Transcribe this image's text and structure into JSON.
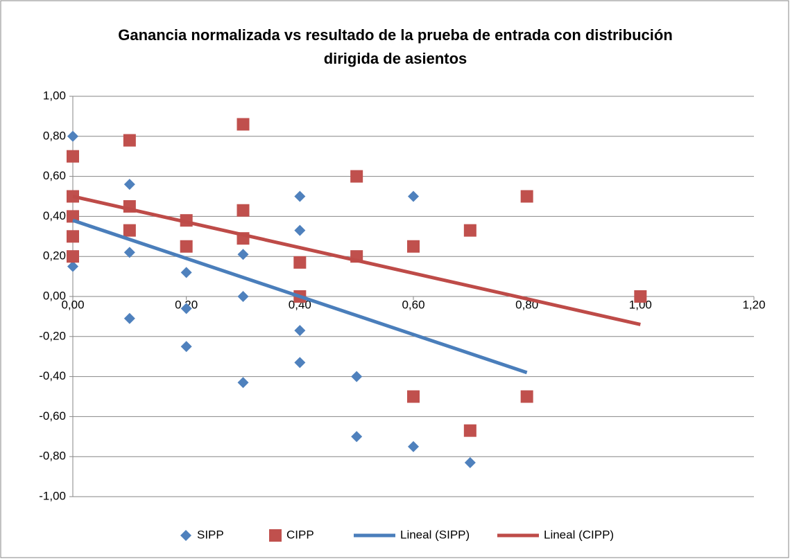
{
  "chart_data": {
    "type": "scatter",
    "title": "Ganancia normalizada vs resultado de la prueba de entrada con distribución dirigida de asientos",
    "xlim": [
      0,
      1.2
    ],
    "ylim": [
      -1,
      1
    ],
    "xticks": [
      {
        "value": 0,
        "label": "0,00"
      },
      {
        "value": 0.2,
        "label": "0,20"
      },
      {
        "value": 0.4,
        "label": "0,40"
      },
      {
        "value": 0.6,
        "label": "0,60"
      },
      {
        "value": 0.8,
        "label": "0,80"
      },
      {
        "value": 1,
        "label": "1,00"
      },
      {
        "value": 1.2,
        "label": "1,20"
      }
    ],
    "yticks": [
      {
        "value": -1,
        "label": "-1,00"
      },
      {
        "value": -0.8,
        "label": "-0,80"
      },
      {
        "value": -0.6,
        "label": "-0,60"
      },
      {
        "value": -0.4,
        "label": "-0,40"
      },
      {
        "value": -0.2,
        "label": "-0,20"
      },
      {
        "value": 0,
        "label": "0,00"
      },
      {
        "value": 0.2,
        "label": "0,20"
      },
      {
        "value": 0.4,
        "label": "0,40"
      },
      {
        "value": 0.6,
        "label": "0,60"
      },
      {
        "value": 0.8,
        "label": "0,80"
      },
      {
        "value": 1,
        "label": "1,00"
      }
    ],
    "grid": true,
    "legend": "bottom",
    "series": [
      {
        "name": "SIPP",
        "color": "#4f81bd",
        "marker": "diamond",
        "x": [
          0,
          0,
          0.1,
          0.1,
          0.1,
          0.2,
          0.2,
          0.2,
          0.3,
          0.3,
          0.3,
          0.4,
          0.4,
          0.4,
          0.4,
          0.5,
          0.5,
          0.6,
          0.6,
          0.7
        ],
        "values": [
          0.8,
          0.15,
          0.56,
          0.22,
          -0.11,
          0.12,
          -0.06,
          -0.25,
          0.21,
          0,
          -0.43,
          0.5,
          0.33,
          -0.17,
          -0.33,
          -0.4,
          -0.7,
          0.5,
          -0.75,
          -0.83
        ]
      },
      {
        "name": "CIPP",
        "color": "#c0504d",
        "marker": "square",
        "x": [
          0,
          0,
          0,
          0,
          0,
          0.1,
          0.1,
          0.1,
          0.2,
          0.2,
          0.3,
          0.3,
          0.3,
          0.4,
          0.4,
          0.5,
          0.5,
          0.6,
          0.6,
          0.7,
          0.7,
          0.8,
          0.8,
          1.0
        ],
        "values": [
          0.7,
          0.5,
          0.4,
          0.3,
          0.2,
          0.78,
          0.45,
          0.33,
          0.38,
          0.25,
          0.86,
          0.43,
          0.29,
          0.17,
          0,
          0.6,
          0.2,
          0.25,
          -0.5,
          0.33,
          -0.67,
          0.5,
          -0.5,
          0
        ]
      },
      {
        "name": "Lineal (SIPP)",
        "color": "#4a7ebb",
        "marker": "line",
        "x": [
          0,
          0.8
        ],
        "values": [
          0.38,
          -0.38
        ]
      },
      {
        "name": "Lineal (CIPP)",
        "color": "#be4b48",
        "marker": "line",
        "x": [
          0,
          1.0
        ],
        "values": [
          0.5,
          -0.14
        ]
      }
    ]
  }
}
